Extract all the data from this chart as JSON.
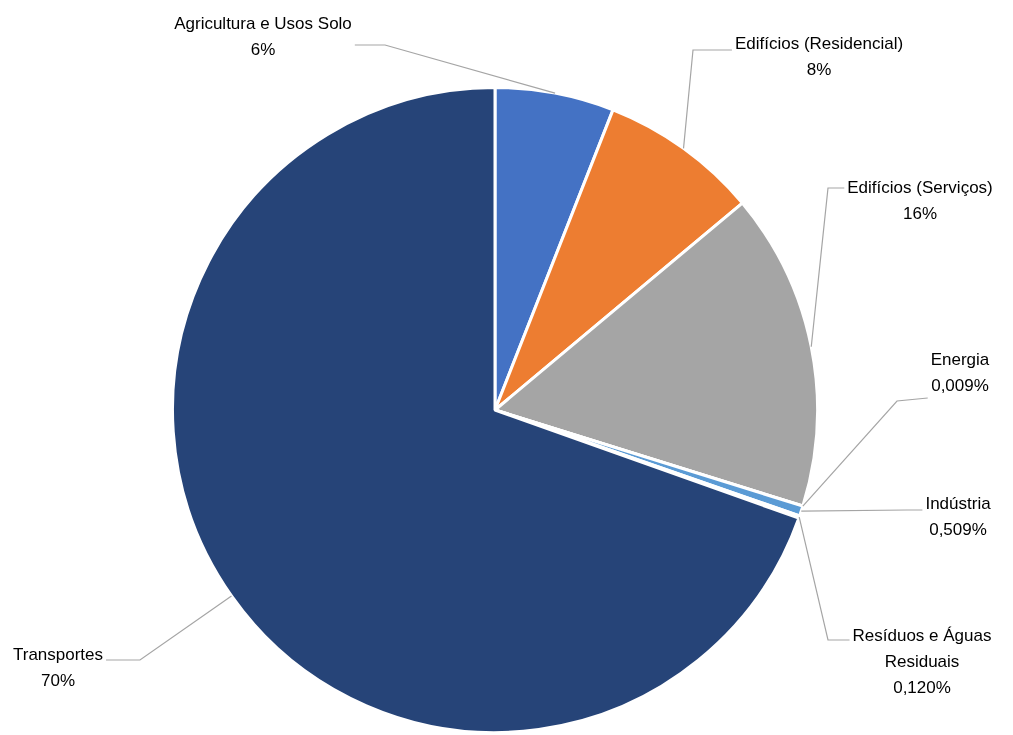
{
  "chart_data": {
    "type": "pie",
    "categories": [
      "Agricultura e Usos Solo",
      "Edifícios (Residencial)",
      "Edifícios (Serviços)",
      "Energia",
      "Indústria",
      "Resíduos e Águas Residuais",
      "Transportes"
    ],
    "values": [
      6,
      8,
      16,
      0.009,
      0.509,
      0.12,
      70
    ],
    "value_labels": [
      "6%",
      "8%",
      "16%",
      "0,009%",
      "0,509%",
      "0,120%",
      "70%"
    ],
    "colors": [
      "#4472c4",
      "#ed7d31",
      "#a5a5a5",
      "#ffc000",
      "#5b9bd5",
      "#70ad47",
      "#264478"
    ],
    "legend": false
  }
}
